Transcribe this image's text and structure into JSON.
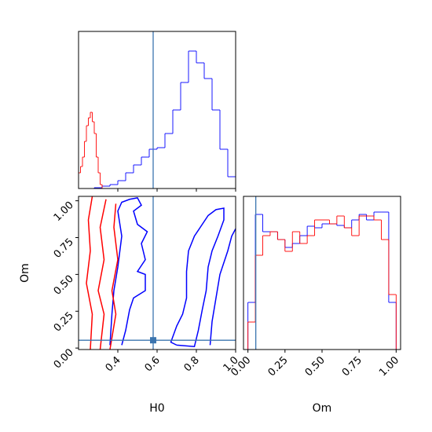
{
  "chart_data": [
    {
      "type": "histogram",
      "xlim": [
        0.2,
        1.0
      ],
      "ylim": [
        0,
        200
      ],
      "xticks": [
        0.4,
        0.6,
        0.8,
        {
          "value": 1,
          "label": "1.0"
        }
      ],
      "show_tick_labels": false,
      "vline": 0.58,
      "truth_color": "#3b75af",
      "series": [
        {
          "color": "#0000ff",
          "bins": [
            0.2,
            0.24,
            0.28,
            0.32,
            0.36,
            0.4,
            0.44,
            0.48,
            0.52,
            0.56,
            0.6,
            0.64,
            0.68,
            0.72,
            0.76,
            0.8,
            0.84,
            0.88,
            0.92,
            0.96,
            1.0
          ],
          "values": [
            0,
            0,
            1,
            3,
            5,
            10,
            20,
            30,
            40,
            50,
            52,
            70,
            100,
            135,
            175,
            160,
            140,
            100,
            50,
            15
          ]
        },
        {
          "color": "#ff0000",
          "bins": [
            0.2,
            0.21,
            0.22,
            0.23,
            0.24,
            0.25,
            0.26,
            0.27,
            0.28,
            0.29,
            0.3,
            0.31,
            0.32
          ],
          "values": [
            20,
            28,
            40,
            60,
            80,
            90,
            97,
            85,
            70,
            40,
            20,
            5
          ]
        }
      ]
    },
    {
      "type": "contour",
      "xlabel": "H0",
      "ylabel": "Om",
      "xlim": [
        0.2,
        1.0
      ],
      "ylim": [
        -0.01,
        1.03
      ],
      "xticks": [
        0.4,
        0.6,
        0.8,
        {
          "value": 1,
          "label": "1.0"
        }
      ],
      "yticks": [
        {
          "value": 0,
          "label": "0.00"
        },
        {
          "value": 0.25,
          "label": "0.25"
        },
        {
          "value": 0.5,
          "label": "0.50"
        },
        {
          "value": 0.75,
          "label": "0.75"
        },
        {
          "value": 1,
          "label": "1.00"
        }
      ],
      "vline": 0.58,
      "hline": 0.053,
      "truth_color": "#3b75af",
      "series": [
        {
          "color": "#0000ff",
          "lines": [
            {
              "x": [
                0.7,
                0.79,
                0.81,
                0.83,
                0.85,
                0.86,
                0.88,
                0.91,
                0.94,
                0.94,
                0.9,
                0.86,
                0.82,
                0.79,
                0.76,
                0.75,
                0.75,
                0.73,
                0.7,
                0.67,
                0.7
              ],
              "y": [
                0.02,
                0.01,
                0.12,
                0.26,
                0.39,
                0.55,
                0.66,
                0.76,
                0.87,
                0.95,
                0.94,
                0.9,
                0.82,
                0.76,
                0.66,
                0.52,
                0.34,
                0.23,
                0.15,
                0.04,
                0.02
              ]
            },
            {
              "x": [
                0.87,
                0.88,
                0.9,
                0.92,
                0.96,
                0.98,
                1.0
              ],
              "y": [
                0.02,
                0.18,
                0.34,
                0.5,
                0.66,
                0.76,
                0.81
              ]
            },
            {
              "x": [
                0.36,
                0.37,
                0.38,
                0.4,
                0.42,
                0.4,
                0.42,
                0.46,
                0.5,
                0.52,
                0.48,
                0.5,
                0.55,
                0.52,
                0.54,
                0.5,
                0.54,
                0.54,
                0.48,
                0.46,
                0.44,
                0.42
              ],
              "y": [
                0.02,
                0.23,
                0.39,
                0.55,
                0.76,
                0.93,
                0.99,
                1.01,
                1.02,
                0.97,
                0.93,
                0.84,
                0.79,
                0.71,
                0.6,
                0.52,
                0.5,
                0.39,
                0.34,
                0.26,
                0.12,
                0.02
              ]
            }
          ]
        },
        {
          "color": "#ff0000",
          "lines": [
            {
              "x": [
                0.26,
                0.27,
                0.24,
                0.26,
                0.25,
                0.27
              ],
              "y": [
                -0.01,
                0.23,
                0.44,
                0.66,
                0.87,
                1.03
              ]
            },
            {
              "x": [
                0.31,
                0.33,
                0.3,
                0.33,
                0.31,
                0.34
              ],
              "y": [
                -0.01,
                0.23,
                0.39,
                0.6,
                0.82,
                1.01
              ]
            },
            {
              "x": [
                0.36,
                0.39,
                0.37,
                0.4,
                0.38,
                0.39
              ],
              "y": [
                -0.01,
                0.23,
                0.39,
                0.6,
                0.82,
                0.98
              ]
            }
          ]
        }
      ]
    },
    {
      "type": "histogram",
      "xlabel": "Om",
      "xlim": [
        -0.03,
        1.03
      ],
      "ylim": [
        0,
        195
      ],
      "xticks": [
        {
          "value": 0,
          "label": "0.00"
        },
        {
          "value": 0.25,
          "label": "0.25"
        },
        {
          "value": 0.5,
          "label": "0.50"
        },
        {
          "value": 0.75,
          "label": "0.75"
        },
        {
          "value": 1,
          "label": "1.00"
        }
      ],
      "show_tick_labels": true,
      "vline": 0.053,
      "truth_color": "#3b75af",
      "series": [
        {
          "color": "#0000ff",
          "bins": [
            0,
            0.05,
            0.1,
            0.15,
            0.2,
            0.25,
            0.3,
            0.35,
            0.4,
            0.45,
            0.5,
            0.55,
            0.6,
            0.65,
            0.7,
            0.75,
            0.8,
            0.85,
            0.9,
            0.95,
            1.0
          ],
          "values": [
            60,
            172,
            150,
            150,
            140,
            130,
            135,
            145,
            157,
            155,
            160,
            160,
            158,
            155,
            165,
            172,
            165,
            175,
            175,
            60
          ]
        },
        {
          "color": "#ff0000",
          "bins": [
            0,
            0.05,
            0.1,
            0.15,
            0.2,
            0.25,
            0.3,
            0.35,
            0.4,
            0.45,
            0.5,
            0.55,
            0.6,
            0.65,
            0.7,
            0.75,
            0.8,
            0.85,
            0.9,
            0.95,
            1.0
          ],
          "values": [
            35,
            120,
            145,
            150,
            140,
            125,
            150,
            135,
            145,
            165,
            165,
            160,
            170,
            155,
            145,
            170,
            170,
            165,
            140,
            70
          ]
        }
      ]
    }
  ]
}
